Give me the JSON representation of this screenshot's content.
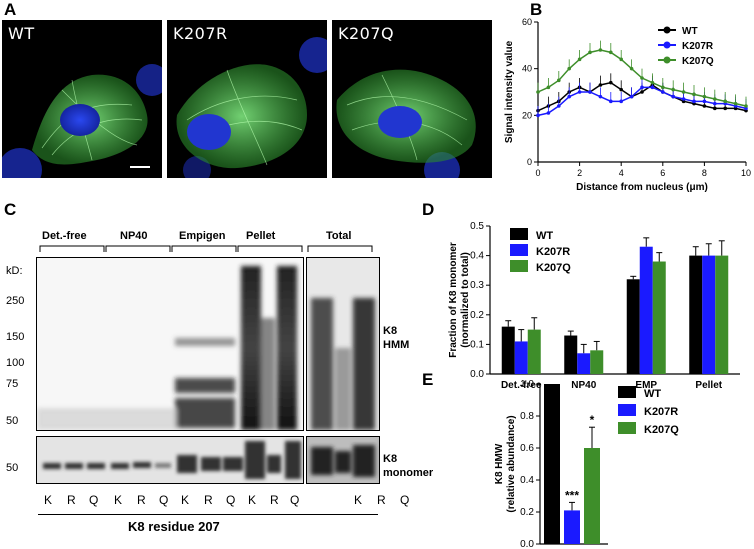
{
  "panel_labels": {
    "a": "A",
    "b": "B",
    "c": "C",
    "d": "D",
    "e": "E"
  },
  "micrographs": [
    {
      "label": "WT"
    },
    {
      "label": "K207R"
    },
    {
      "label": "K207Q"
    }
  ],
  "colors": {
    "wt": "#000000",
    "k207r": "#1a1aff",
    "k207q": "#3e8e2a",
    "gfp": "#4fd24f",
    "dapi": "#1f38d8"
  },
  "blot": {
    "groups": [
      "Det.-free",
      "NP40",
      "Empigen",
      "Pellet",
      "Total"
    ],
    "kd_label": "kD:",
    "kd_markers": [
      "250",
      "150",
      "100",
      "75",
      "50"
    ],
    "lower_marker": "50",
    "lanes": [
      "K",
      "R",
      "Q",
      "K",
      "R",
      "Q",
      "K",
      "R",
      "Q",
      "K",
      "R",
      "Q",
      "K",
      "R",
      "Q"
    ],
    "right_label_hmm": [
      "K8",
      "HMM"
    ],
    "right_label_monomer": [
      "K8",
      "monomer"
    ],
    "x_title": "K8 residue 207"
  },
  "chart_data": [
    {
      "type": "line",
      "panel": "B",
      "xlabel": "Distance from nucleus (μm)",
      "ylabel": "Signal intensity value",
      "xlim": [
        0,
        10
      ],
      "ylim": [
        0,
        60
      ],
      "xticks": [
        0,
        2,
        4,
        6,
        8,
        10
      ],
      "yticks": [
        0,
        20,
        40,
        60
      ],
      "legend_position": "top-right",
      "x": [
        0,
        0.5,
        1,
        1.5,
        2,
        2.5,
        3,
        3.5,
        4,
        4.5,
        5,
        5.5,
        6,
        6.5,
        7,
        7.5,
        8,
        8.5,
        9,
        9.5,
        10
      ],
      "series": [
        {
          "name": "WT",
          "values": [
            22,
            24,
            26,
            30,
            32,
            30,
            33,
            34,
            31,
            28,
            30,
            33,
            30,
            28,
            26,
            25,
            24,
            23,
            23,
            23,
            22
          ]
        },
        {
          "name": "K207R",
          "values": [
            20,
            21,
            24,
            28,
            30,
            30,
            28,
            26,
            26,
            28,
            32,
            32,
            30,
            28,
            27,
            26,
            26,
            25,
            25,
            24,
            23
          ]
        },
        {
          "name": "K207Q",
          "values": [
            30,
            32,
            35,
            40,
            44,
            47,
            48,
            47,
            44,
            40,
            36,
            34,
            32,
            31,
            30,
            29,
            28,
            27,
            26,
            25,
            24
          ]
        }
      ]
    },
    {
      "type": "bar",
      "panel": "D",
      "ylabel": "Fraction of K8 monomer (normalized to total)",
      "ylabel_lines": [
        "Fraction of K8 monomer",
        "(normalized to total)"
      ],
      "categories": [
        "Det.-free",
        "NP40",
        "EMP",
        "Pellet"
      ],
      "ylim": [
        0,
        0.5
      ],
      "yticks": [
        "0.0",
        "0.1",
        "0.2",
        "0.3",
        "0.4",
        "0.5"
      ],
      "legend_position": "top-left",
      "series": [
        {
          "name": "WT",
          "values": [
            0.16,
            0.13,
            0.32,
            0.4
          ],
          "errors": [
            0.02,
            0.015,
            0.01,
            0.03
          ]
        },
        {
          "name": "K207R",
          "values": [
            0.11,
            0.07,
            0.43,
            0.4
          ],
          "errors": [
            0.04,
            0.03,
            0.03,
            0.04
          ]
        },
        {
          "name": "K207Q",
          "values": [
            0.15,
            0.08,
            0.38,
            0.4
          ],
          "errors": [
            0.04,
            0.03,
            0.03,
            0.05
          ]
        }
      ]
    },
    {
      "type": "bar",
      "panel": "E",
      "ylabel": "K8 HMW (relative abundance)",
      "ylabel_lines": [
        "K8 HMW",
        "(relative abundance)"
      ],
      "ylim": [
        0,
        1.0
      ],
      "yticks": [
        "0.0",
        "0.2",
        "0.4",
        "0.6",
        "0.8",
        "1.0"
      ],
      "legend_position": "right",
      "series": [
        {
          "name": "WT",
          "value": 1.0,
          "error": 0,
          "sig": ""
        },
        {
          "name": "K207R",
          "value": 0.21,
          "error": 0.05,
          "sig": "***"
        },
        {
          "name": "K207Q",
          "value": 0.6,
          "error": 0.13,
          "sig": "*"
        }
      ]
    }
  ]
}
